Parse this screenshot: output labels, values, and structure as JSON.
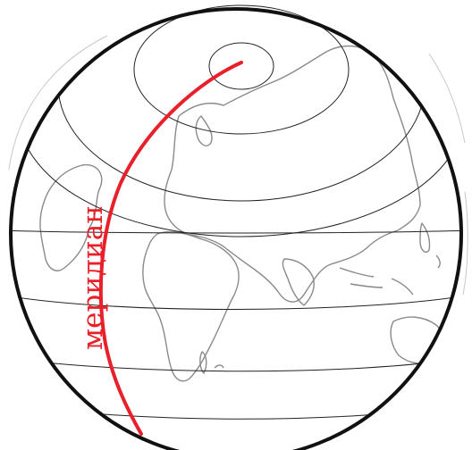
{
  "diagram": {
    "meridian_label": "меридиан",
    "colors": {
      "globe_outline": "#111111",
      "parallels": "#222222",
      "continents": "#8a8a8a",
      "meridian": "#e8202a"
    }
  }
}
